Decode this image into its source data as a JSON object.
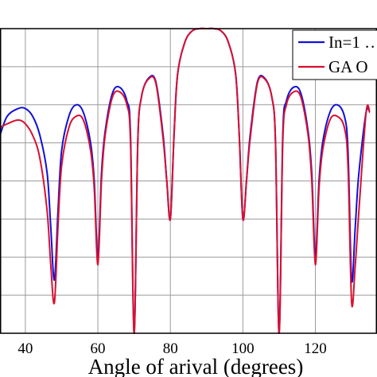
{
  "chart_data": {
    "type": "line",
    "xlabel": "Angle of arival (degrees)",
    "ylabel": "",
    "title": "",
    "xlim": [
      33,
      474
    ],
    "x_ticks": [
      40,
      60,
      80,
      100,
      120
    ],
    "grid": true,
    "legend_position": "top-right",
    "colors": {
      "blue": "#1010d8",
      "red": "#d81030"
    },
    "series": [
      {
        "name": "In=1",
        "legend_label": "In=1 …",
        "color": "#1010d8",
        "x": [
          33,
          35,
          38,
          40,
          42,
          44,
          46,
          47,
          48,
          49,
          50,
          52,
          54,
          56,
          58,
          59,
          60,
          61,
          62,
          64,
          66,
          68,
          69,
          70,
          71,
          72,
          74,
          76,
          78,
          79,
          80,
          81,
          82,
          84,
          86,
          88,
          90,
          92,
          94,
          96,
          98,
          99,
          100,
          101,
          102,
          104,
          106,
          108,
          109,
          110,
          111,
          112,
          114,
          116,
          118,
          119,
          120,
          121,
          122,
          124,
          126,
          128,
          129,
          130,
          131,
          132,
          134,
          135
        ],
        "db": [
          -14,
          -11.5,
          -10.5,
          -10.5,
          -11.5,
          -14,
          -19,
          -26,
          -33,
          -24,
          -16,
          -11.5,
          -10,
          -11,
          -15,
          -20,
          -30,
          -19,
          -13.5,
          -8.5,
          -7.7,
          -9.5,
          -14,
          -40,
          -15,
          -9,
          -6.5,
          -7,
          -14,
          -20,
          -25,
          -14,
          -6,
          -1.8,
          -0.3,
          0,
          0,
          0,
          -0.3,
          -1.8,
          -6,
          -14,
          -25,
          -20,
          -14,
          -7,
          -6.5,
          -9,
          -15,
          -40,
          -14,
          -9.5,
          -7.7,
          -8.5,
          -13.5,
          -19,
          -30,
          -20,
          -15,
          -11,
          -10,
          -11.5,
          -16,
          -33,
          -26,
          -19,
          -11,
          -11
        ]
      },
      {
        "name": "GA O",
        "legend_label": "GA O",
        "color": "#d81030",
        "x": [
          33,
          35,
          38,
          40,
          42,
          44,
          46,
          47,
          48,
          49,
          50,
          52,
          54,
          56,
          58,
          59,
          60,
          61,
          62,
          64,
          66,
          68,
          69,
          70,
          71,
          72,
          74,
          76,
          78,
          79,
          80,
          81,
          82,
          84,
          86,
          88,
          90,
          92,
          94,
          96,
          98,
          99,
          100,
          101,
          102,
          104,
          106,
          108,
          109,
          110,
          111,
          112,
          114,
          116,
          118,
          119,
          120,
          121,
          122,
          124,
          126,
          128,
          129,
          130,
          131,
          132,
          134,
          135
        ],
        "db": [
          -13,
          -12.5,
          -12,
          -12.5,
          -14,
          -17,
          -24,
          -31,
          -36,
          -26,
          -18,
          -13,
          -11.5,
          -12,
          -16,
          -21,
          -31,
          -20,
          -14,
          -9,
          -8.3,
          -10,
          -15,
          -40,
          -15,
          -9,
          -6.6,
          -7.2,
          -14.5,
          -20,
          -25,
          -14,
          -6,
          -1.8,
          -0.3,
          0,
          0,
          0,
          -0.3,
          -1.8,
          -6,
          -14,
          -25,
          -20,
          -14.5,
          -7.2,
          -6.6,
          -9,
          -15,
          -40,
          -15,
          -10,
          -8.3,
          -9,
          -14,
          -20,
          -31,
          -21,
          -16,
          -12,
          -11.5,
          -13,
          -18,
          -36,
          -31,
          -24,
          -11,
          -11
        ]
      }
    ]
  }
}
